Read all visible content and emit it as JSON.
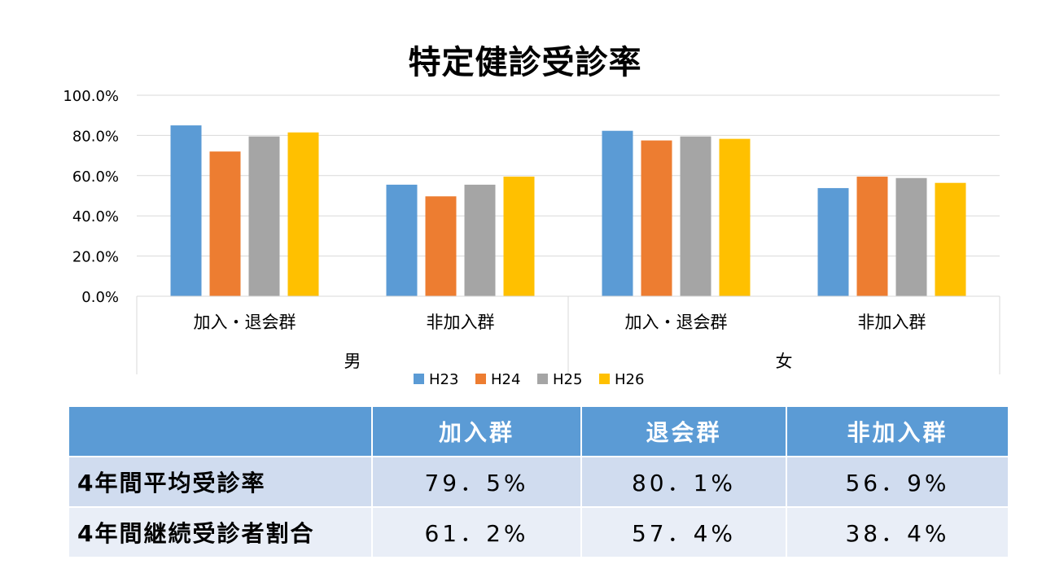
{
  "chart_data": {
    "type": "bar",
    "title": "特定健診受診率",
    "groups": [
      {
        "label": "男",
        "categories": [
          "加入・退会群",
          "非加入群"
        ]
      },
      {
        "label": "女",
        "categories": [
          "加入・退会群",
          "非加入群"
        ]
      }
    ],
    "categories": [
      "加入・退会群",
      "非加入群",
      "加入・退会群",
      "非加入群"
    ],
    "series": [
      {
        "name": "H23",
        "color": "#5b9bd5",
        "values": [
          85.0,
          55.5,
          82.3,
          53.8
        ]
      },
      {
        "name": "H24",
        "color": "#ed7d31",
        "values": [
          72.0,
          49.7,
          77.5,
          59.5
        ]
      },
      {
        "name": "H25",
        "color": "#a5a5a5",
        "values": [
          79.5,
          55.5,
          79.5,
          58.8
        ]
      },
      {
        "name": "H26",
        "color": "#ffc000",
        "values": [
          81.5,
          59.5,
          78.3,
          56.4
        ]
      }
    ],
    "ylim": [
      0,
      100
    ],
    "yticks": [
      "0.0%",
      "20.0%",
      "40.0%",
      "60.0%",
      "80.0%",
      "100.0%"
    ],
    "grid": true,
    "legend_position": "bottom"
  },
  "table": {
    "headers": [
      "",
      "加入群",
      "退会群",
      "非加入群"
    ],
    "rows": [
      {
        "label": "4年間平均受診率",
        "values": [
          "79．5%",
          "80．1%",
          "56．9%"
        ]
      },
      {
        "label": "4年間継続受診者割合",
        "values": [
          "61．2%",
          "57．4%",
          "38．4%"
        ]
      }
    ]
  }
}
